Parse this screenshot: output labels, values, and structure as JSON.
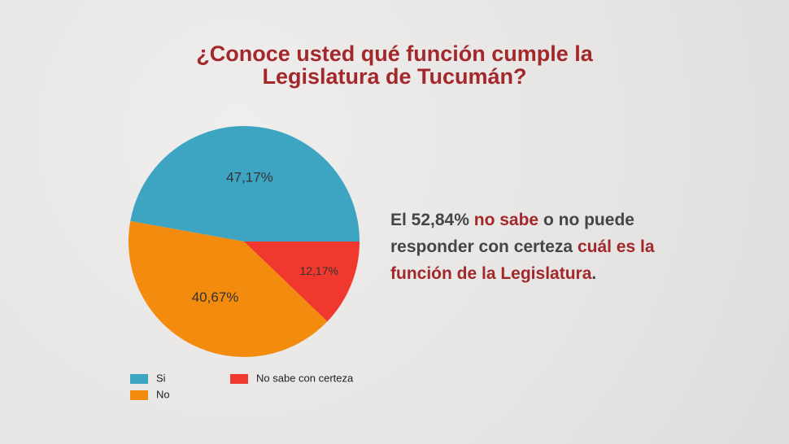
{
  "chart_data": {
    "type": "pie",
    "title": "¿Conoce usted qué función cumple la Legislatura de Tucumán?",
    "categories": [
      "Si",
      "No",
      "No sabe con certeza"
    ],
    "values": [
      47.17,
      40.67,
      12.17
    ],
    "value_labels": [
      "47,17%",
      "40,67%",
      "12,17%"
    ],
    "colors": [
      "#3da5c1",
      "#f38b0f",
      "#f0382f"
    ],
    "annotation": [
      {
        "text": "El 52,84%",
        "color": "#454545"
      },
      {
        "text": "no sabe",
        "color": "#a3282b"
      },
      {
        "text": "o no puede responder con certeza",
        "color": "#454545"
      },
      {
        "text": "cuál es la función de la Legislatura",
        "color": "#a3282b"
      },
      {
        "text": ".",
        "color": "#454545"
      }
    ]
  }
}
